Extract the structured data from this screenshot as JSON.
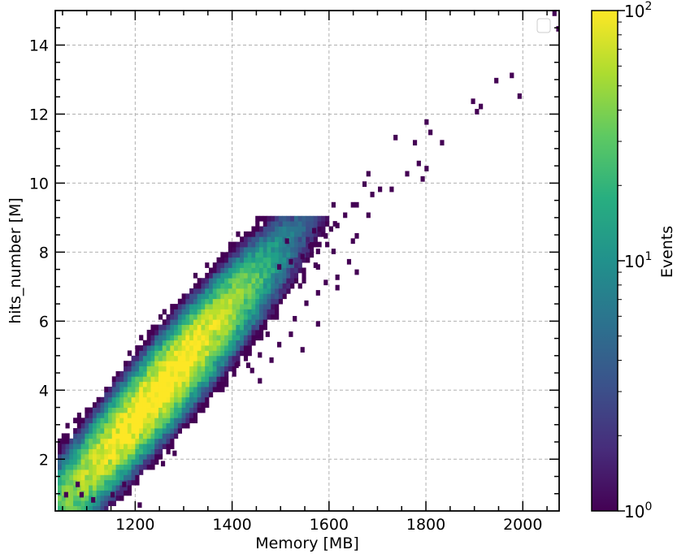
{
  "chart_data": {
    "type": "heatmap",
    "title": "",
    "xlabel": "Memory [MB]",
    "ylabel": "hits_number [M]",
    "colorbar_label": "Events",
    "xlim": [
      1035,
      2075
    ],
    "ylim": [
      0.5,
      15.0
    ],
    "x_ticks": [
      1200,
      1400,
      1600,
      1800,
      2000
    ],
    "y_ticks": [
      2,
      4,
      6,
      8,
      10,
      12,
      14
    ],
    "x_tick_labels": [
      "1200",
      "1400",
      "1600",
      "1800",
      "2000"
    ],
    "y_tick_labels": [
      "2",
      "4",
      "6",
      "8",
      "10",
      "12",
      "14"
    ],
    "colorbar": {
      "scale": "log",
      "range": [
        1,
        100
      ],
      "major_ticks": [
        {
          "value": 1,
          "base": "10",
          "exp": "0"
        },
        {
          "value": 10,
          "base": "10",
          "exp": "1"
        },
        {
          "value": 100,
          "base": "10",
          "exp": "2"
        }
      ],
      "colormap": "viridis"
    },
    "grid": true,
    "grid_style": "dashed",
    "legend_placement": "top-right",
    "legend_entries": [],
    "bin_size": {
      "x": 8,
      "y": 0.15
    },
    "density_model": {
      "description": "two correlated lobes along hits = 0.0152*memory - 14.93",
      "main_ridge": {
        "slope": 0.0152,
        "intercept": -14.93
      },
      "lobes": [
        {
          "center": [
            1220,
            3.45
          ],
          "peak_events": 100
        },
        {
          "center": [
            1305,
            3.55
          ],
          "peak_events": 55
        }
      ]
    },
    "sparse_points": [
      [
        2068,
        14.9
      ],
      [
        2070,
        14.5
      ],
      [
        1978,
        13.15
      ],
      [
        1945,
        13.0
      ],
      [
        1990,
        12.55
      ],
      [
        1895,
        12.4
      ],
      [
        1915,
        12.15
      ],
      [
        1905,
        12.0
      ],
      [
        1800,
        11.7
      ],
      [
        1812,
        11.4
      ],
      [
        1835,
        11.15
      ],
      [
        1740,
        11.25
      ],
      [
        1775,
        11.1
      ],
      [
        1788,
        10.55
      ],
      [
        1760,
        10.25
      ],
      [
        1800,
        10.45
      ],
      [
        1795,
        10.1
      ],
      [
        1680,
        10.2
      ],
      [
        1670,
        9.95
      ],
      [
        1730,
        9.75
      ],
      [
        1705,
        9.8
      ],
      [
        1690,
        9.6
      ],
      [
        1660,
        9.4
      ],
      [
        1645,
        9.4
      ],
      [
        1610,
        9.3
      ],
      [
        1635,
        9.1
      ],
      [
        1680,
        9.1
      ],
      [
        1570,
        8.65
      ],
      [
        1620,
        8.7
      ],
      [
        1660,
        8.5
      ],
      [
        1595,
        8.45
      ],
      [
        1645,
        8.35
      ],
      [
        1560,
        8.2
      ],
      [
        1580,
        8.0
      ],
      [
        1605,
        7.95
      ],
      [
        1640,
        7.7
      ],
      [
        1655,
        7.4
      ],
      [
        1615,
        7.3
      ],
      [
        1595,
        7.05
      ],
      [
        1515,
        8.25
      ],
      [
        1545,
        7.85
      ],
      [
        1520,
        7.7
      ],
      [
        1580,
        7.5
      ],
      [
        1500,
        7.6
      ],
      [
        1620,
        7.0
      ],
      [
        1580,
        6.8
      ],
      [
        1555,
        6.5
      ],
      [
        1530,
        6.0
      ],
      [
        1575,
        5.9
      ],
      [
        1470,
        5.6
      ],
      [
        1500,
        5.3
      ],
      [
        1455,
        5.05
      ],
      [
        1410,
        4.7
      ],
      [
        1430,
        4.75
      ],
      [
        1480,
        4.85
      ],
      [
        1440,
        4.55
      ],
      [
        1460,
        4.3
      ],
      [
        1520,
        5.55
      ],
      [
        1545,
        5.1
      ],
      [
        1205,
        0.7
      ],
      [
        1150,
        0.95
      ],
      [
        1115,
        0.75
      ],
      [
        1090,
        0.9
      ],
      [
        1060,
        0.95
      ],
      [
        1080,
        1.2
      ],
      [
        1175,
        1.3
      ],
      [
        1255,
        1.9
      ],
      [
        1280,
        2.2
      ]
    ]
  },
  "colors": {
    "axis": "#000000",
    "grid": "#b0b0b0",
    "background": "#ffffff"
  }
}
